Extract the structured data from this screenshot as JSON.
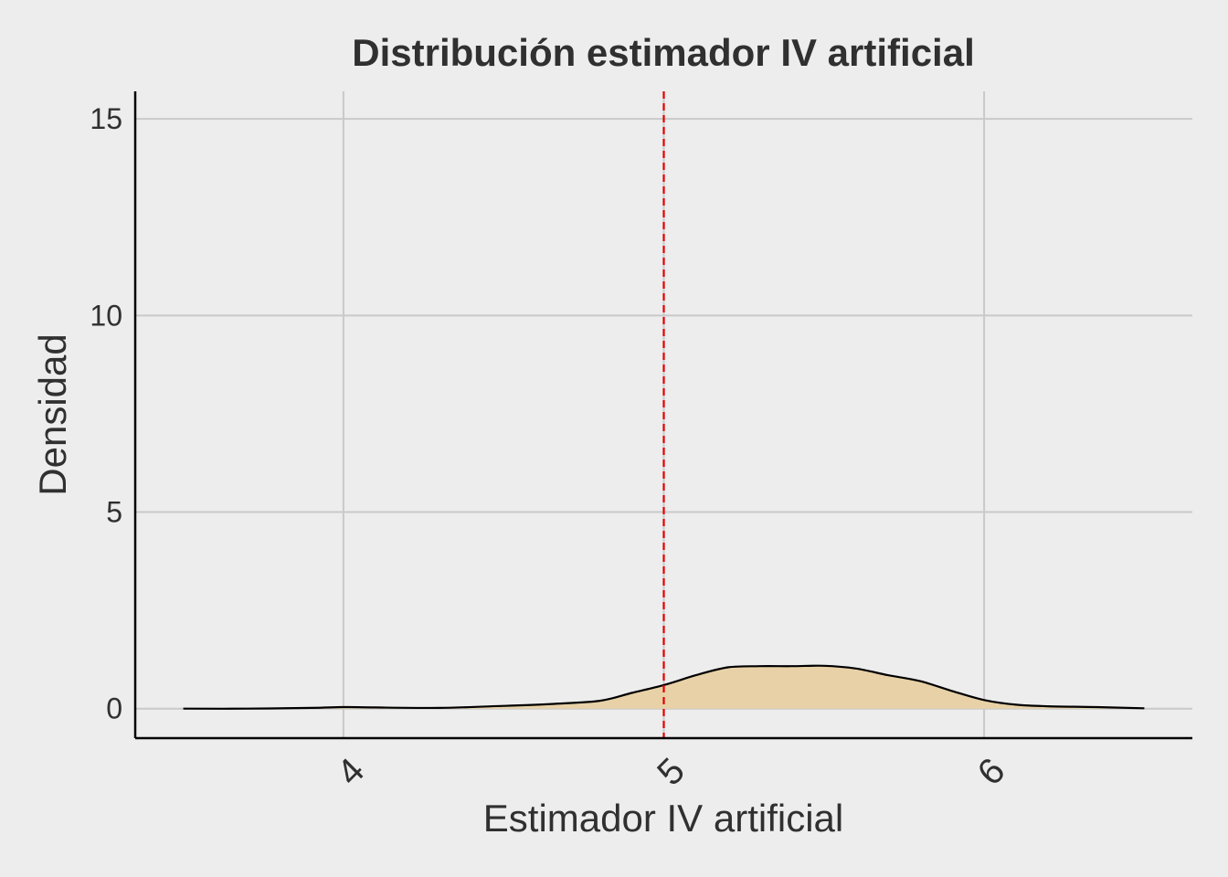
{
  "chart_data": {
    "type": "area",
    "title": "Distribución estimador IV artificial",
    "xlabel": "Estimador IV artificial",
    "ylabel": "Densidad",
    "xlim": [
      3.35,
      6.65
    ],
    "ylim": [
      -0.75,
      15.7
    ],
    "x_ticks": [
      4,
      5,
      6
    ],
    "y_ticks": [
      0,
      5,
      10,
      15
    ],
    "grid": true,
    "fill_color": "#e8d1a7",
    "line_color": "#000000",
    "reference_line": {
      "x": 5,
      "color": "#e30000",
      "style": "dashed"
    },
    "density": {
      "x": [
        3.5,
        3.7,
        3.9,
        4.0,
        4.1,
        4.3,
        4.5,
        4.65,
        4.8,
        4.9,
        5.0,
        5.1,
        5.2,
        5.3,
        5.4,
        5.5,
        5.6,
        5.7,
        5.8,
        5.9,
        6.0,
        6.1,
        6.2,
        6.35,
        6.5
      ],
      "y": [
        0.0,
        0.0,
        0.02,
        0.04,
        0.03,
        0.02,
        0.07,
        0.12,
        0.2,
        0.4,
        0.6,
        0.85,
        1.05,
        1.08,
        1.08,
        1.09,
        1.02,
        0.85,
        0.7,
        0.45,
        0.22,
        0.1,
        0.06,
        0.04,
        0.01
      ]
    }
  }
}
